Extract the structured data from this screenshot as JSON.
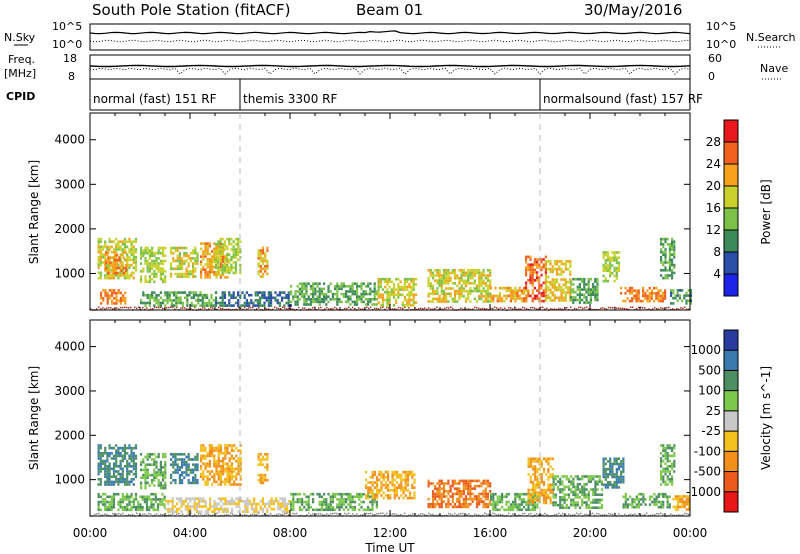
{
  "header": {
    "station": "South Pole Station (fitACF)",
    "beam": "Beam 01",
    "date": "30/May/2016"
  },
  "noise_panel": {
    "left_label": "N.Sky",
    "right_label": "N.Search",
    "left_ticks": [
      "10^5",
      "10^0"
    ],
    "right_ticks": [
      "10^5",
      "10^0"
    ]
  },
  "freq_panel": {
    "left_label_1": "Freq.",
    "left_label_2": "[MHz]",
    "right_label": "Nave",
    "left_ticks": [
      "18",
      "8"
    ],
    "right_ticks": [
      "60",
      "0"
    ]
  },
  "cpid": {
    "label": "CPID",
    "segments": [
      {
        "name": "normal (fast) 151 RF",
        "start_h": 0,
        "end_h": 6
      },
      {
        "name": "themis 3300 RF",
        "start_h": 6,
        "end_h": 18
      },
      {
        "name": "normalsound (fast) 157 RF",
        "start_h": 18,
        "end_h": 24
      }
    ]
  },
  "power_colorbar": {
    "label": "Power [dB]",
    "ticks": [
      "28",
      "24",
      "20",
      "16",
      "12",
      "8",
      "4"
    ],
    "colors": [
      "#e8181c",
      "#f2611e",
      "#f6a11c",
      "#c9d12a",
      "#7cc248",
      "#3c8a5a",
      "#2a4fa8",
      "#1c24e8"
    ]
  },
  "velocity_colorbar": {
    "label": "Velocity [m s^-1]",
    "ticks": [
      "1000",
      "500",
      "100",
      "25",
      "-25",
      "-100",
      "-500",
      "-1000"
    ],
    "colors": [
      "#2a3ba0",
      "#3a7ab0",
      "#4c8f62",
      "#7cc84a",
      "#c8c8c8",
      "#f4c01c",
      "#f2901c",
      "#ec5a1c",
      "#e81818"
    ]
  },
  "axes": {
    "ylabel": "Slant Range [km]",
    "yticks": [
      "4000",
      "3000",
      "2000",
      "1000"
    ],
    "xticks": [
      "00:00",
      "04:00",
      "08:00",
      "12:00",
      "16:00",
      "20:00",
      "00:00"
    ],
    "xlabel": "Time UT"
  },
  "chart_data": {
    "type": "heatmap",
    "title": "South Pole Station (fitACF)",
    "xlabel": "Time UT",
    "ylabel": "Slant Range [km]",
    "xlim": [
      0,
      24
    ],
    "ylim": [
      180,
      4600
    ],
    "grid": false,
    "power_regions": [
      {
        "t0": 0.3,
        "t1": 1.8,
        "r0": 900,
        "r1": 1800,
        "db": 18
      },
      {
        "t0": 0.6,
        "t1": 1.4,
        "r0": 1000,
        "r1": 1500,
        "db": 24
      },
      {
        "t0": 2.0,
        "t1": 3.0,
        "r0": 800,
        "r1": 1600,
        "db": 16
      },
      {
        "t0": 3.2,
        "t1": 4.3,
        "r0": 900,
        "r1": 1600,
        "db": 18
      },
      {
        "t0": 4.4,
        "t1": 5.5,
        "r0": 900,
        "r1": 1700,
        "db": 22
      },
      {
        "t0": 5.0,
        "t1": 6.0,
        "r0": 1000,
        "r1": 1800,
        "db": 16
      },
      {
        "t0": 6.7,
        "t1": 7.1,
        "r0": 900,
        "r1": 1600,
        "db": 22
      },
      {
        "t0": 0.4,
        "t1": 1.4,
        "r0": 350,
        "r1": 650,
        "db": 24
      },
      {
        "t0": 2.0,
        "t1": 5.0,
        "r0": 300,
        "r1": 600,
        "db": 12
      },
      {
        "t0": 5.0,
        "t1": 8.0,
        "r0": 300,
        "r1": 600,
        "db": 8
      },
      {
        "t0": 8.0,
        "t1": 11.5,
        "r0": 300,
        "r1": 800,
        "db": 12
      },
      {
        "t0": 11.5,
        "t1": 13.0,
        "r0": 300,
        "r1": 900,
        "db": 18
      },
      {
        "t0": 13.5,
        "t1": 16.0,
        "r0": 350,
        "r1": 1100,
        "db": 18
      },
      {
        "t0": 16.0,
        "t1": 17.5,
        "r0": 350,
        "r1": 700,
        "db": 22
      },
      {
        "t0": 17.4,
        "t1": 18.2,
        "r0": 400,
        "r1": 1400,
        "db": 26
      },
      {
        "t0": 18.2,
        "t1": 19.2,
        "r0": 400,
        "r1": 1300,
        "db": 20
      },
      {
        "t0": 19.2,
        "t1": 20.3,
        "r0": 350,
        "r1": 900,
        "db": 12
      },
      {
        "t0": 20.5,
        "t1": 21.2,
        "r0": 800,
        "r1": 1500,
        "db": 16
      },
      {
        "t0": 21.2,
        "t1": 23.0,
        "r0": 350,
        "r1": 700,
        "db": 24
      },
      {
        "t0": 22.8,
        "t1": 23.4,
        "r0": 900,
        "r1": 1800,
        "db": 12
      },
      {
        "t0": 23.2,
        "t1": 24.0,
        "r0": 350,
        "r1": 650,
        "db": 10
      }
    ],
    "velocity_regions": [
      {
        "t0": 0.3,
        "t1": 1.8,
        "r0": 900,
        "r1": 1800,
        "vel": 500
      },
      {
        "t0": 2.0,
        "t1": 3.0,
        "r0": 800,
        "r1": 1600,
        "vel": 100
      },
      {
        "t0": 3.2,
        "t1": 4.3,
        "r0": 900,
        "r1": 1600,
        "vel": 500
      },
      {
        "t0": 4.4,
        "t1": 6.0,
        "r0": 900,
        "r1": 1800,
        "vel": -100
      },
      {
        "t0": 6.7,
        "t1": 7.1,
        "r0": 900,
        "r1": 1600,
        "vel": -100
      },
      {
        "t0": 0.3,
        "t1": 3.0,
        "r0": 300,
        "r1": 700,
        "vel": 100
      },
      {
        "t0": 3.0,
        "t1": 8.0,
        "r0": 300,
        "r1": 600,
        "vel": -25
      },
      {
        "t0": 8.0,
        "t1": 11.5,
        "r0": 300,
        "r1": 700,
        "vel": 100
      },
      {
        "t0": 11.0,
        "t1": 13.0,
        "r0": 600,
        "r1": 1200,
        "vel": -100
      },
      {
        "t0": 13.5,
        "t1": 16.0,
        "r0": 400,
        "r1": 1000,
        "vel": -500
      },
      {
        "t0": 16.0,
        "t1": 18.0,
        "r0": 300,
        "r1": 700,
        "vel": 100
      },
      {
        "t0": 17.5,
        "t1": 18.5,
        "r0": 500,
        "r1": 1500,
        "vel": -100
      },
      {
        "t0": 18.5,
        "t1": 20.5,
        "r0": 350,
        "r1": 1100,
        "vel": 100
      },
      {
        "t0": 20.5,
        "t1": 21.3,
        "r0": 800,
        "r1": 1500,
        "vel": 500
      },
      {
        "t0": 21.3,
        "t1": 23.2,
        "r0": 350,
        "r1": 700,
        "vel": 100
      },
      {
        "t0": 22.8,
        "t1": 23.4,
        "r0": 900,
        "r1": 1800,
        "vel": 100
      },
      {
        "t0": 23.3,
        "t1": 24.0,
        "r0": 350,
        "r1": 650,
        "vel": -100
      }
    ]
  }
}
